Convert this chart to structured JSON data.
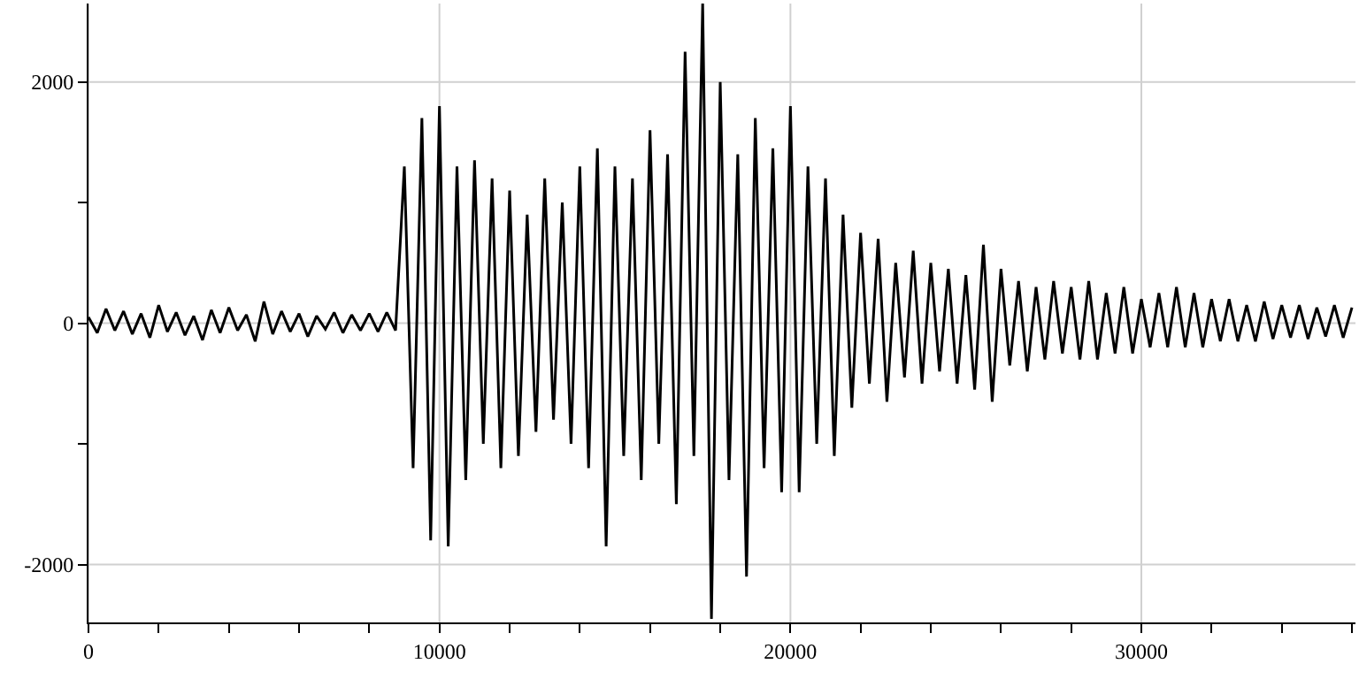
{
  "chart_data": {
    "type": "line",
    "color": "#000000",
    "x": [
      0,
      250,
      500,
      750,
      1000,
      1250,
      1500,
      1750,
      2000,
      2250,
      2500,
      2750,
      3000,
      3250,
      3500,
      3750,
      4000,
      4250,
      4500,
      4750,
      5000,
      5250,
      5500,
      5750,
      6000,
      6250,
      6500,
      6750,
      7000,
      7250,
      7500,
      7750,
      8000,
      8250,
      8500,
      8750,
      9000,
      9250,
      9500,
      9750,
      10000,
      10250,
      10500,
      10750,
      11000,
      11250,
      11500,
      11750,
      12000,
      12250,
      12500,
      12750,
      13000,
      13250,
      13500,
      13750,
      14000,
      14250,
      14500,
      14750,
      15000,
      15250,
      15500,
      15750,
      16000,
      16250,
      16500,
      16750,
      17000,
      17250,
      17500,
      17750,
      18000,
      18250,
      18500,
      18750,
      19000,
      19250,
      19500,
      19750,
      20000,
      20250,
      20500,
      20750,
      21000,
      21250,
      21500,
      21750,
      22000,
      22250,
      22500,
      22750,
      23000,
      23250,
      23500,
      23750,
      24000,
      24250,
      24500,
      24750,
      25000,
      25250,
      25500,
      25750,
      26000,
      26250,
      26500,
      26750,
      27000,
      27250,
      27500,
      27750,
      28000,
      28250,
      28500,
      28750,
      29000,
      29250,
      29500,
      29750,
      30000,
      30250,
      30500,
      30750,
      31000,
      31250,
      31500,
      31750,
      32000,
      32250,
      32500,
      32750,
      33000,
      33250,
      33500,
      33750,
      34000,
      34250,
      34500,
      34750,
      35000,
      35250,
      35500,
      35750,
      36000
    ],
    "values": [
      50,
      -80,
      120,
      -60,
      100,
      -90,
      80,
      -120,
      150,
      -70,
      90,
      -100,
      60,
      -140,
      110,
      -80,
      130,
      -60,
      70,
      -150,
      180,
      -90,
      100,
      -70,
      80,
      -110,
      60,
      -50,
      90,
      -80,
      70,
      -60,
      80,
      -70,
      90,
      -60,
      1300,
      -1200,
      1700,
      -1800,
      1800,
      -1850,
      1300,
      -1300,
      1350,
      -1000,
      1200,
      -1200,
      1100,
      -1100,
      900,
      -900,
      1200,
      -800,
      1000,
      -1000,
      1300,
      -1200,
      1450,
      -1850,
      1300,
      -1100,
      1200,
      -1300,
      1600,
      -1000,
      1400,
      -1500,
      2250,
      -1100,
      2650,
      -2450,
      2000,
      -1300,
      1400,
      -2100,
      1700,
      -1200,
      1450,
      -1400,
      1800,
      -1400,
      1300,
      -1000,
      1200,
      -1100,
      900,
      -700,
      750,
      -500,
      700,
      -650,
      500,
      -450,
      600,
      -500,
      500,
      -400,
      450,
      -500,
      400,
      -550,
      650,
      -650,
      450,
      -350,
      350,
      -400,
      300,
      -300,
      350,
      -250,
      300,
      -300,
      350,
      -300,
      250,
      -250,
      300,
      -250,
      200,
      -200,
      250,
      -200,
      300,
      -200,
      250,
      -200,
      200,
      -150,
      200,
      -150,
      150,
      -150,
      180,
      -130,
      150,
      -120,
      150,
      -130,
      130,
      -110,
      150,
      -120,
      130
    ],
    "xlim": [
      0,
      36100
    ],
    "ylim": [
      -2480,
      2650
    ],
    "xticks": [
      0,
      {
        "value": 2000,
        "label": null
      },
      {
        "value": 4000,
        "label": null
      },
      {
        "value": 6000,
        "label": null
      },
      {
        "value": 8000,
        "label": null
      },
      10000,
      {
        "value": 12000,
        "label": null
      },
      {
        "value": 14000,
        "label": null
      },
      {
        "value": 16000,
        "label": null
      },
      {
        "value": 18000,
        "label": null
      },
      20000,
      {
        "value": 22000,
        "label": null
      },
      {
        "value": 24000,
        "label": null
      },
      {
        "value": 26000,
        "label": null
      },
      {
        "value": 28000,
        "label": null
      },
      30000,
      {
        "value": 32000,
        "label": null
      },
      {
        "value": 34000,
        "label": null
      },
      {
        "value": 36000,
        "label": null
      }
    ],
    "yticks": [
      -2000,
      {
        "value": -1000,
        "label": null
      },
      0,
      {
        "value": 1000,
        "label": null
      },
      2000
    ],
    "grid": true,
    "legend": false,
    "marker": "none",
    "line_style": "solid"
  }
}
